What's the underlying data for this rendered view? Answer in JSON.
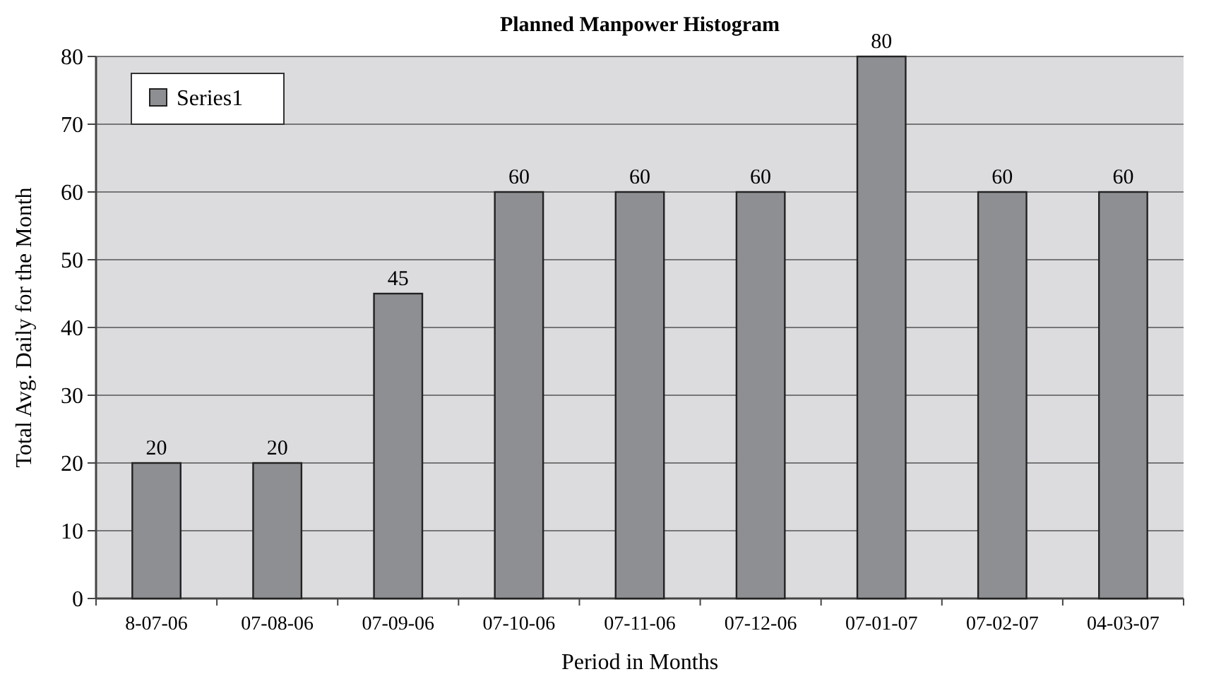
{
  "chart_data": {
    "type": "bar",
    "title": "Planned Manpower Histogram",
    "xlabel": "Period in Months",
    "ylabel": "Total Avg. Daily for the Month",
    "categories": [
      "8-07-06",
      "07-08-06",
      "07-09-06",
      "07-10-06",
      "07-11-06",
      "07-12-06",
      "07-01-07",
      "07-02-07",
      "04-03-07"
    ],
    "series": [
      {
        "name": "Series1",
        "color": "#8e8f93",
        "values": [
          20,
          20,
          45,
          60,
          60,
          60,
          80,
          60,
          60
        ]
      }
    ],
    "ylim": [
      0,
      80
    ],
    "yticks": [
      0,
      10,
      20,
      30,
      40,
      50,
      60,
      70,
      80
    ],
    "grid": "y",
    "legend": "top left",
    "data_labels": true
  }
}
